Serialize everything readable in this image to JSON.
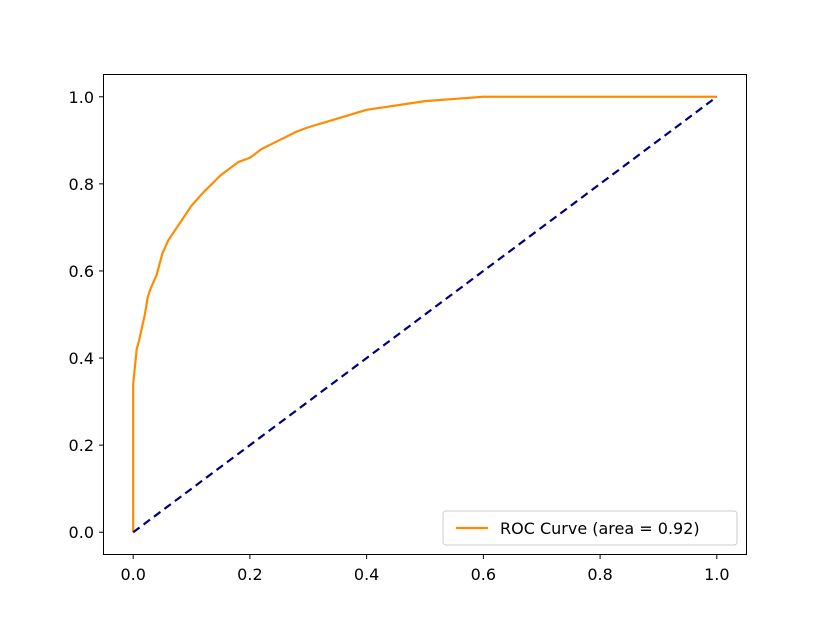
{
  "chart_data": {
    "type": "line",
    "title": "",
    "xlabel": "",
    "ylabel": "",
    "xlim": [
      -0.05,
      1.05
    ],
    "ylim": [
      -0.05,
      1.05
    ],
    "x_ticks": [
      0.0,
      0.2,
      0.4,
      0.6,
      0.8,
      1.0
    ],
    "y_ticks": [
      0.0,
      0.2,
      0.4,
      0.6,
      0.8,
      1.0
    ],
    "x_tick_labels": [
      "0.0",
      "0.2",
      "0.4",
      "0.6",
      "0.8",
      "1.0"
    ],
    "y_tick_labels": [
      "0.0",
      "0.2",
      "0.4",
      "0.6",
      "0.8",
      "1.0"
    ],
    "grid": false,
    "legend": {
      "position": "lower-right"
    },
    "series": [
      {
        "name": "ROC Curve (area  = 0.92)",
        "color": "#ff8c00",
        "line_style": "solid",
        "x": [
          0.0,
          0.0,
          0.003,
          0.006,
          0.01,
          0.015,
          0.02,
          0.025,
          0.03,
          0.04,
          0.05,
          0.06,
          0.07,
          0.08,
          0.1,
          0.12,
          0.15,
          0.18,
          0.2,
          0.22,
          0.25,
          0.28,
          0.3,
          0.35,
          0.4,
          0.45,
          0.5,
          0.55,
          0.6,
          0.7,
          0.8,
          0.9,
          1.0
        ],
        "y": [
          0.0,
          0.34,
          0.38,
          0.42,
          0.44,
          0.47,
          0.5,
          0.54,
          0.56,
          0.59,
          0.64,
          0.67,
          0.69,
          0.71,
          0.75,
          0.78,
          0.82,
          0.85,
          0.86,
          0.88,
          0.9,
          0.92,
          0.93,
          0.95,
          0.97,
          0.98,
          0.99,
          0.995,
          1.0,
          1.0,
          1.0,
          1.0,
          1.0
        ]
      },
      {
        "color": "#000080",
        "line_style": "dashed",
        "x": [
          0.0,
          1.0
        ],
        "y": [
          0.0,
          1.0
        ]
      }
    ]
  }
}
